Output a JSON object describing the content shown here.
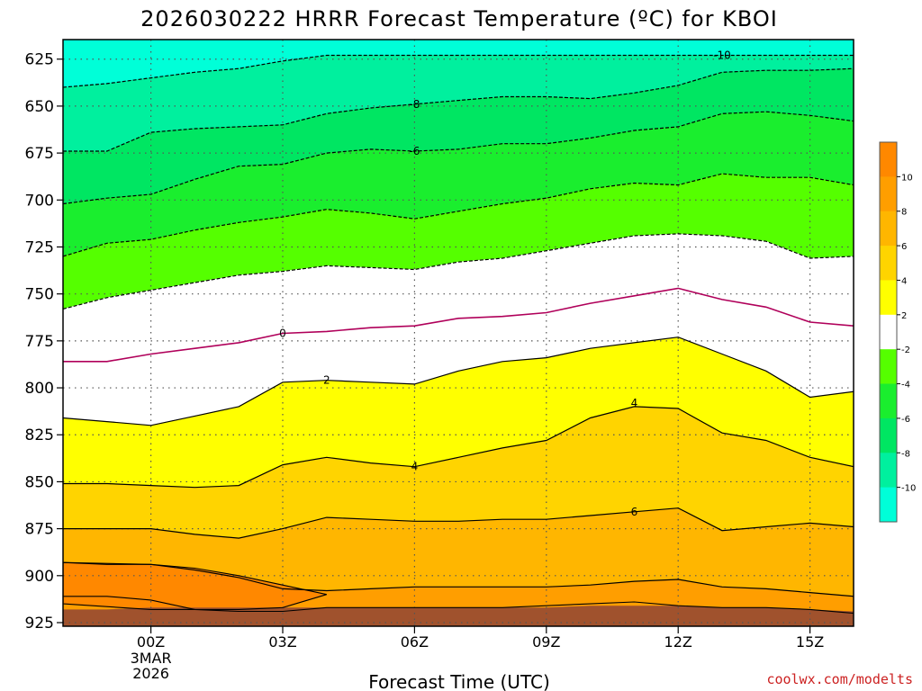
{
  "chart_data": {
    "type": "contour",
    "title": "2026030222 HRRR Forecast Temperature (ºC) for KBOI",
    "xlabel": "Forecast Time (UTC)",
    "ylabel": "",
    "credit": "coolwx.com/modelts",
    "x_hours": [
      -2,
      -1,
      0,
      1,
      2,
      3,
      4,
      5,
      6,
      7,
      8,
      9,
      10,
      11,
      12,
      13,
      14,
      15,
      16
    ],
    "x_range": [
      -2,
      16
    ],
    "y_range_hpa": [
      925,
      623
    ],
    "y_ticks": [
      625,
      650,
      675,
      700,
      725,
      750,
      775,
      800,
      825,
      850,
      875,
      900,
      925
    ],
    "x_ticks": [
      {
        "hour": 0,
        "label": "00Z",
        "sub": [
          "3MAR",
          "2026"
        ]
      },
      {
        "hour": 3,
        "label": "03Z",
        "sub": []
      },
      {
        "hour": 6,
        "label": "06Z",
        "sub": []
      },
      {
        "hour": 9,
        "label": "09Z",
        "sub": []
      },
      {
        "hour": 12,
        "label": "12Z",
        "sub": []
      },
      {
        "hour": 15,
        "label": "15Z",
        "sub": []
      }
    ],
    "contour_levels_hpa": {
      "-10": [
        640,
        638,
        635,
        632,
        630,
        626,
        623,
        623,
        623,
        623,
        623,
        623,
        623,
        623,
        623,
        623,
        623,
        623,
        623
      ],
      "-8": [
        674,
        674,
        664,
        662,
        661,
        660,
        654,
        651,
        649,
        647,
        645,
        645,
        646,
        643,
        639,
        632,
        631,
        631,
        630
      ],
      "-6": [
        702,
        699,
        697,
        689,
        682,
        681,
        675,
        673,
        674,
        673,
        670,
        670,
        667,
        663,
        661,
        654,
        653,
        655,
        658
      ],
      "-4": [
        730,
        723,
        721,
        716,
        712,
        709,
        705,
        707,
        710,
        706,
        702,
        699,
        694,
        691,
        692,
        686,
        688,
        688,
        692
      ],
      "-2": [
        758,
        752,
        748,
        744,
        740,
        738,
        735,
        736,
        737,
        733,
        731,
        727,
        723,
        719,
        718,
        719,
        722,
        731,
        730
      ],
      "0": [
        786,
        786,
        782,
        779,
        776,
        771,
        770,
        768,
        767,
        763,
        762,
        760,
        755,
        751,
        747,
        753,
        757,
        765,
        767
      ],
      "2": [
        816,
        818,
        820,
        815,
        810,
        797,
        796,
        797,
        798,
        791,
        786,
        784,
        779,
        776,
        773,
        782,
        791,
        805,
        802
      ],
      "4": [
        851,
        851,
        852,
        853,
        852,
        841,
        837,
        840,
        842,
        837,
        832,
        828,
        816,
        810,
        811,
        824,
        828,
        837,
        842
      ],
      "6": [
        875,
        875,
        875,
        878,
        880,
        875,
        869,
        870,
        871,
        871,
        870,
        870,
        868,
        866,
        864,
        876,
        874,
        872,
        874
      ],
      "8": [
        893,
        894,
        894,
        897,
        901,
        907,
        908,
        907,
        906,
        906,
        906,
        906,
        905,
        903,
        902,
        906,
        907,
        909,
        911
      ],
      "10": [
        911,
        911,
        913,
        918,
        919,
        919,
        917,
        917,
        917,
        917,
        917,
        916,
        915,
        914,
        916,
        917,
        917,
        918,
        920
      ]
    },
    "warm_pool_10_hpa": [
      [
        -2,
        893
      ],
      [
        0,
        894
      ],
      [
        1,
        896
      ],
      [
        2,
        900
      ],
      [
        4,
        910
      ],
      [
        3,
        917
      ],
      [
        2,
        918
      ],
      [
        0,
        918
      ],
      [
        -2,
        915
      ]
    ],
    "contour_labels": [
      {
        "value": "-10",
        "hour": 13,
        "hpa": 623
      },
      {
        "value": "-8",
        "hour": 6,
        "hpa": 649
      },
      {
        "value": "-6",
        "hour": 6,
        "hpa": 674
      },
      {
        "value": "0",
        "hour": 3,
        "hpa": 771
      },
      {
        "value": "2",
        "hour": 4,
        "hpa": 796
      },
      {
        "value": "4",
        "hour": 6,
        "hpa": 842
      },
      {
        "value": "4",
        "hour": 11,
        "hpa": 808
      },
      {
        "value": "6",
        "hour": 11,
        "hpa": 866
      }
    ],
    "terrain_hpa": [
      918,
      918,
      917,
      917,
      917,
      917,
      917,
      917,
      917,
      917,
      917,
      917,
      916,
      916,
      916,
      917,
      917,
      918,
      919
    ],
    "colorbar": {
      "ticks": [
        10,
        8,
        6,
        4,
        2,
        -2,
        -4,
        -6,
        -8,
        -10
      ],
      "bins": [
        {
          "lo": 10,
          "hi": 12,
          "color": "#ff8800"
        },
        {
          "lo": 8,
          "hi": 10,
          "color": "#ff9e00"
        },
        {
          "lo": 6,
          "hi": 8,
          "color": "#ffb600"
        },
        {
          "lo": 4,
          "hi": 6,
          "color": "#ffd400"
        },
        {
          "lo": 2,
          "hi": 4,
          "color": "#ffff00"
        },
        {
          "lo": -2,
          "hi": 2,
          "color": "#ffffff"
        },
        {
          "lo": -4,
          "hi": -2,
          "color": "#55ff00"
        },
        {
          "lo": -6,
          "hi": -4,
          "color": "#1aee2e"
        },
        {
          "lo": -8,
          "hi": -6,
          "color": "#00e662"
        },
        {
          "lo": -10,
          "hi": -8,
          "color": "#00f09e"
        },
        {
          "lo": -12,
          "hi": -10,
          "color": "#00ffd8"
        }
      ]
    }
  }
}
